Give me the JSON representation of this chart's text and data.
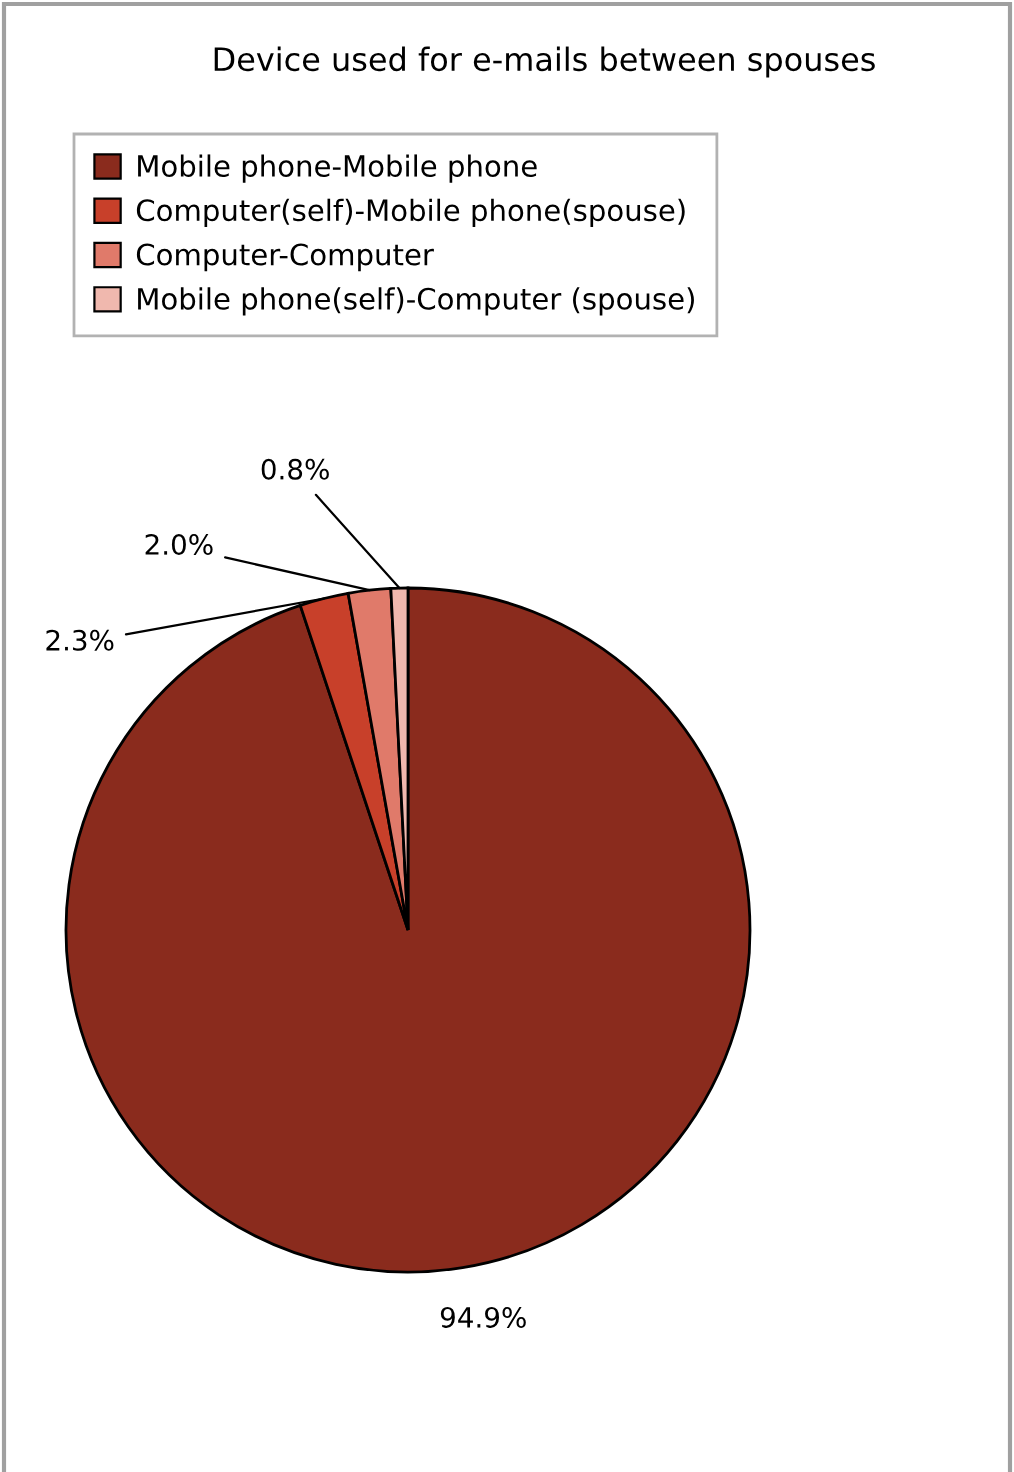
{
  "chart_data": {
    "type": "pie",
    "title": "Device used for e-mails between spouses",
    "categories": [
      "Mobile phone-Mobile phone",
      "Computer(self)-Mobile phone(spouse)",
      "Computer-Computer",
      "Mobile phone(self)-Computer (spouse)"
    ],
    "values": [
      94.9,
      2.3,
      2.0,
      0.8
    ],
    "colors": [
      "#8a2b1d",
      "#c8402a",
      "#e07a6a",
      "#f0b8ae"
    ],
    "value_labels": [
      "94.9%",
      "2.3%",
      "2.0%",
      "0.8%"
    ],
    "legend": "top"
  }
}
